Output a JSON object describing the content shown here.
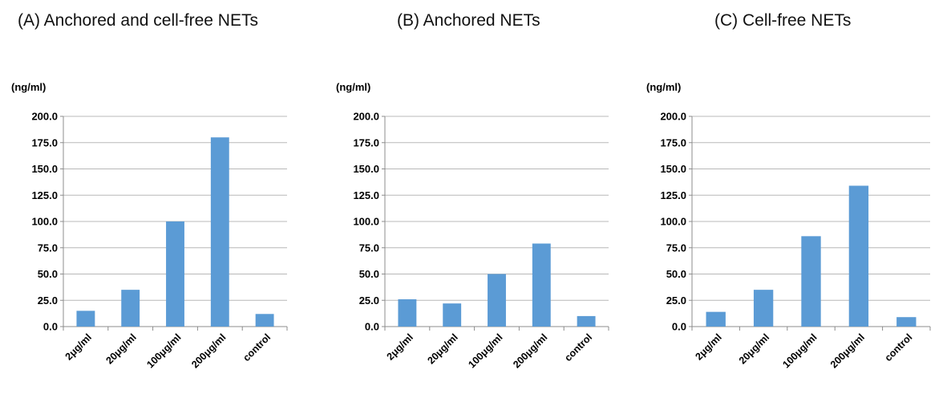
{
  "chart_data": [
    {
      "type": "bar",
      "title": "(A) Anchored and cell-free NETs",
      "ylabel": "(ng/ml)",
      "xlabel": "",
      "ylim": [
        0,
        200
      ],
      "yticks": [
        "0.0",
        "25.0",
        "50.0",
        "75.0",
        "100.0",
        "125.0",
        "150.0",
        "175.0",
        "200.0"
      ],
      "categories": [
        "2μg/ml",
        "20μg/ml",
        "100μg/ml",
        "200μg/ml",
        "control"
      ],
      "values": [
        15,
        35,
        100,
        180,
        12
      ],
      "grid": true,
      "bar_color": "#5b9bd5"
    },
    {
      "type": "bar",
      "title": "(B) Anchored NETs",
      "ylabel": "(ng/ml)",
      "xlabel": "",
      "ylim": [
        0,
        200
      ],
      "yticks": [
        "0.0",
        "25.0",
        "50.0",
        "75.0",
        "100.0",
        "125.0",
        "150.0",
        "175.0",
        "200.0"
      ],
      "categories": [
        "2μg/ml",
        "20μg/ml",
        "100μg/ml",
        "200μg/ml",
        "control"
      ],
      "values": [
        26,
        22,
        50,
        79,
        10
      ],
      "grid": true,
      "bar_color": "#5b9bd5"
    },
    {
      "type": "bar",
      "title": "(C) Cell-free NETs",
      "ylabel": "(ng/ml)",
      "xlabel": "",
      "ylim": [
        0,
        200
      ],
      "yticks": [
        "0.0",
        "25.0",
        "50.0",
        "75.0",
        "100.0",
        "125.0",
        "150.0",
        "175.0",
        "200.0"
      ],
      "categories": [
        "2μg/ml",
        "20μg/ml",
        "100μg/ml",
        "200μg/ml",
        "control"
      ],
      "values": [
        14,
        35,
        86,
        134,
        9
      ],
      "grid": true,
      "bar_color": "#5b9bd5"
    }
  ]
}
